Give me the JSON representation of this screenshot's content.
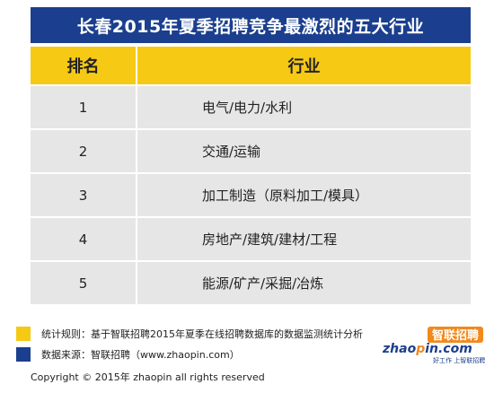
{
  "title": "长春2015年夏季招聘竞争最激烈的五大行业",
  "table": {
    "headers": [
      "排名",
      "行业"
    ],
    "rows": [
      {
        "rank": "1",
        "industry": "电气/电力/水利"
      },
      {
        "rank": "2",
        "industry": "交通/运输"
      },
      {
        "rank": "3",
        "industry": "加工制造（原料加工/模具）"
      },
      {
        "rank": "4",
        "industry": "房地产/建筑/建材/工程"
      },
      {
        "rank": "5",
        "industry": "能源/矿产/采掘/冶炼"
      }
    ]
  },
  "legend": [
    {
      "text": "统计规则：基于智联招聘2015年夏季在线招聘数据库的数据监测统计分析",
      "color": "#f6c915"
    },
    {
      "text": "数据来源：智联招聘（www.zhaopin.com）",
      "color": "#1b3f8e"
    }
  ],
  "copyright": "Copyright  ©  2015年 zhaopin all rights reserved",
  "logo": {
    "cn": "智联招聘",
    "en_left": "zhao",
    "en_mid": "p",
    "en_right": "in.com",
    "slogan": "好工作 上智联招聘"
  },
  "colors": {
    "brand_blue": "#1b3f8e",
    "header_yellow": "#f6c915",
    "row_gray": "#e6e6e6",
    "logo_orange": "#f08a1c"
  }
}
